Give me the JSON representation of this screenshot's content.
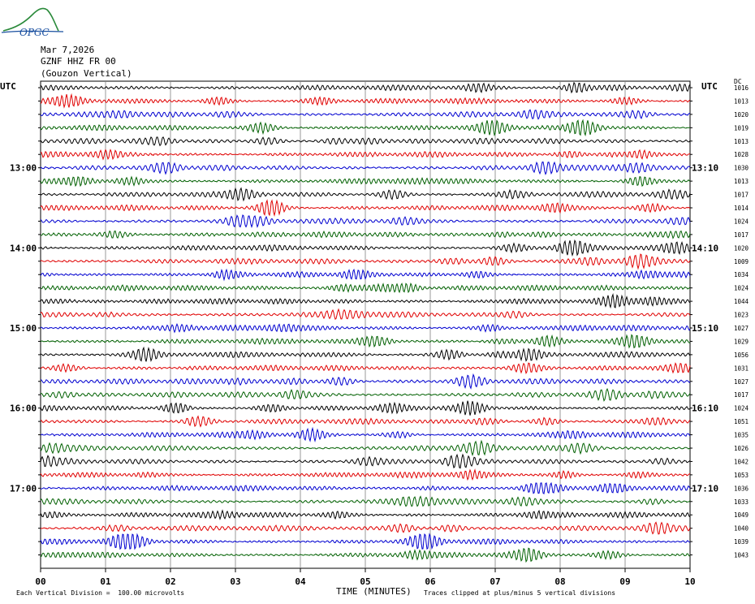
{
  "logo_text": "OPGC",
  "header": {
    "date": "Mar 7,2026",
    "station": "GZNF HHZ FR 00",
    "location": "(Gouzon Vertical)"
  },
  "utc_left": "UTC",
  "utc_right": "UTC",
  "dc_label": "DC",
  "footer": {
    "scale": "Each Vertical Division =  100.00 microvolts",
    "xtitle": "TIME (MINUTES)",
    "clip_note": "Traces clipped at plus/minus 5 vertical divisions"
  },
  "colors": {
    "trace_cycle": [
      "#000000",
      "#e00000",
      "#0000d0",
      "#006000"
    ],
    "grid": "#808080"
  },
  "chart_data": {
    "type": "line",
    "title": "",
    "xlabel": "TIME (MINUTES)",
    "ylabel": "",
    "xlim": [
      0,
      10
    ],
    "x_ticks": [
      "00",
      "01",
      "02",
      "03",
      "04",
      "05",
      "06",
      "07",
      "08",
      "09",
      "10"
    ],
    "left_hour_labels": [
      {
        "trace_index": 6,
        "label": "13:00"
      },
      {
        "trace_index": 12,
        "label": "14:00"
      },
      {
        "trace_index": 18,
        "label": "15:00"
      },
      {
        "trace_index": 24,
        "label": "16:00"
      },
      {
        "trace_index": 30,
        "label": "17:00"
      }
    ],
    "right_hour_labels": [
      {
        "trace_index": 6,
        "label": "13:10"
      },
      {
        "trace_index": 12,
        "label": "14:10"
      },
      {
        "trace_index": 18,
        "label": "15:10"
      },
      {
        "trace_index": 24,
        "label": "16:10"
      },
      {
        "trace_index": 30,
        "label": "17:10"
      }
    ],
    "trace_dc_offsets": [
      "1016",
      "1013",
      "1020",
      "1019",
      "1013",
      "1028",
      "1030",
      "1013",
      "1017",
      "1014",
      "1024",
      "1017",
      "1020",
      "1009",
      "1034",
      "1024",
      "1044",
      "1023",
      "1027",
      "1029",
      "1056",
      "1031",
      "1027",
      "1017",
      "1024",
      "1051",
      "1035",
      "1026",
      "1042",
      "1053",
      "1036",
      "1033",
      "1049",
      "1040",
      "1039",
      "1043"
    ],
    "trace_count": 36,
    "grid": true
  }
}
